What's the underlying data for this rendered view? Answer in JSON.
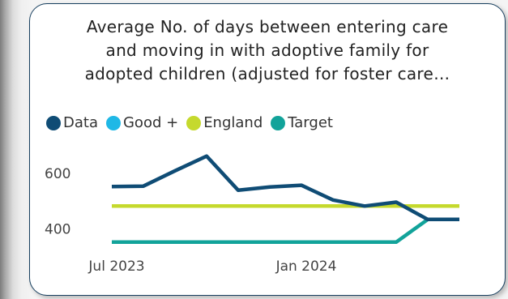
{
  "chart_data": {
    "type": "line",
    "title_lines": [
      "Average No. of days between entering care",
      "and moving in with adoptive family for",
      "adopted children (adjusted for foster care…"
    ],
    "x": [
      "2023-07",
      "2023-08",
      "2023-09",
      "2023-10",
      "2023-11",
      "2023-12",
      "2024-01",
      "2024-02",
      "2024-03",
      "2024-04",
      "2024-05",
      "2024-06"
    ],
    "x_ticks": [
      {
        "label": "Jul 2023",
        "index": 0
      },
      {
        "label": "Jan 2024",
        "index": 6
      }
    ],
    "y_ticks": [
      400,
      600
    ],
    "ylim": [
      335,
      700
    ],
    "series": [
      {
        "name": "Data",
        "color": "#0f4c75",
        "values": [
          553,
          555,
          610,
          663,
          540,
          552,
          558,
          505,
          483,
          497,
          435,
          435
        ]
      },
      {
        "name": "Good +",
        "color": "#1fb8e6",
        "values": [
          null,
          null,
          null,
          null,
          null,
          null,
          null,
          null,
          null,
          null,
          null,
          null
        ]
      },
      {
        "name": "England",
        "color": "#c5d92d",
        "values": [
          483,
          483,
          483,
          483,
          483,
          483,
          483,
          483,
          483,
          483,
          483,
          483
        ]
      },
      {
        "name": "Target",
        "color": "#12a39a",
        "values": [
          353,
          353,
          353,
          353,
          353,
          353,
          353,
          353,
          353,
          353,
          435,
          435
        ]
      }
    ],
    "legend": "top-left",
    "grid": false
  }
}
